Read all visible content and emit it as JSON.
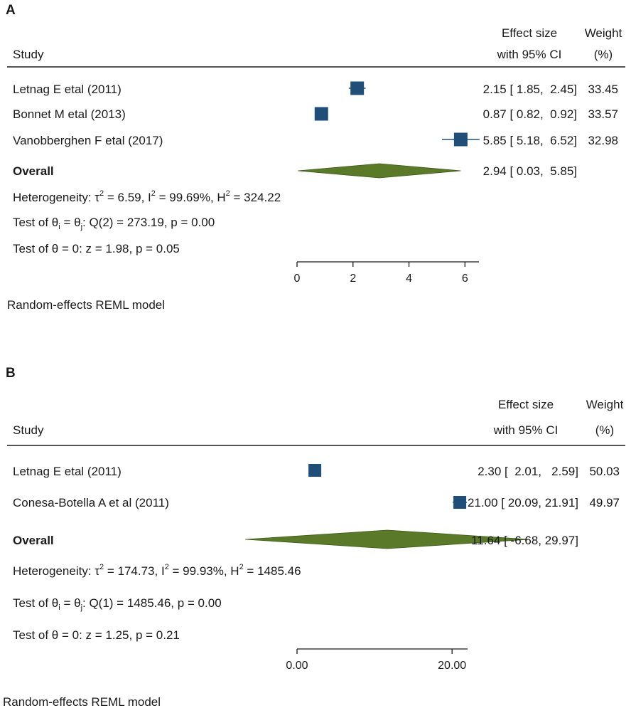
{
  "chart_data": [
    {
      "type": "forest",
      "panel_label": "A",
      "headers": {
        "study": "Study",
        "effect_line1": "Effect size",
        "effect_line2": "with 95% CI",
        "weight_line1": "Weight",
        "weight_line2": "(%)"
      },
      "studies": [
        {
          "name": "Letnag E etal (2011)",
          "es": 2.15,
          "lo": 1.85,
          "hi": 2.45,
          "ci_text": "2.15 [ 1.85,  2.45]",
          "weight": 33.45,
          "weight_text": "33.45"
        },
        {
          "name": "Bonnet M etal (2013)",
          "es": 0.87,
          "lo": 0.82,
          "hi": 0.92,
          "ci_text": "0.87 [ 0.82,  0.92]",
          "weight": 33.57,
          "weight_text": "33.57"
        },
        {
          "name": "Vanobberghen F etal (2017)",
          "es": 5.85,
          "lo": 5.18,
          "hi": 6.52,
          "ci_text": "5.85 [ 5.18,  6.52]",
          "weight": 32.98,
          "weight_text": "32.98"
        }
      ],
      "overall": {
        "label": "Overall",
        "es": 2.94,
        "lo": 0.03,
        "hi": 5.85,
        "ci_text": "2.94 [ 0.03,  5.85]"
      },
      "heterogeneity": {
        "prefix": "Heterogeneity: τ",
        "tau_sup": "2",
        "tau_rest": " = 6.59, I",
        "i2_sup": "2",
        "i2_rest": " = 99.69%, H",
        "h2_sup": "2",
        "h2_rest": " = 324.22"
      },
      "test_q": {
        "a": "Test of θ",
        "sub_i": "i",
        "b": " = θ",
        "sub_j": "j",
        "c": ": Q(2) = 273.19, p = 0.00"
      },
      "test_z": "Test of θ = 0: z = 1.98, p = 0.05",
      "axis": {
        "min": 0,
        "max": 6.5,
        "ticks": [
          0,
          2,
          4,
          6
        ],
        "tick_labels": [
          "0",
          "2",
          "4",
          "6"
        ]
      },
      "model": "Random-effects REML model"
    },
    {
      "type": "forest",
      "panel_label": "B",
      "headers": {
        "study": "Study",
        "effect_line1": "Effect size",
        "effect_line2": "with 95% CI",
        "weight_line1": "Weight",
        "weight_line2": "(%)"
      },
      "studies": [
        {
          "name": "Letnag E etal (2011)",
          "es": 2.3,
          "lo": 2.01,
          "hi": 2.59,
          "ci_text": "2.30 [  2.01,   2.59]",
          "weight": 50.03,
          "weight_text": "50.03"
        },
        {
          "name": "Conesa-Botella A et al (2011)",
          "es": 21.0,
          "lo": 20.09,
          "hi": 21.91,
          "ci_text": "21.00 [ 20.09, 21.91]",
          "weight": 49.97,
          "weight_text": "49.97"
        }
      ],
      "overall": {
        "label": "Overall",
        "es": 11.64,
        "lo": -6.68,
        "hi": 29.97,
        "ci_text": "11.64 [ -6.68, 29.97]"
      },
      "heterogeneity": {
        "prefix": "Heterogeneity: τ",
        "tau_sup": "2",
        "tau_rest": " = 174.73, I",
        "i2_sup": "2",
        "i2_rest": " = 99.93%, H",
        "h2_sup": "2",
        "h2_rest": " = 1485.46"
      },
      "test_q": {
        "a": "Test of θ",
        "sub_i": "i",
        "b": " = θ",
        "sub_j": "j",
        "c": ": Q(1) = 1485.46, p = 0.00"
      },
      "test_z": "Test of θ = 0: z = 1.25, p = 0.21",
      "axis": {
        "min": 0,
        "max": 22,
        "ticks": [
          0,
          20
        ],
        "tick_labels": [
          "0.00",
          "20.00"
        ]
      },
      "model": "Random-effects REML model"
    }
  ],
  "colors": {
    "marker": "#1f4e79",
    "diamond": "#5a7a2a",
    "diamond_edge": "#3f5a1a",
    "line": "#1a1a1a"
  }
}
